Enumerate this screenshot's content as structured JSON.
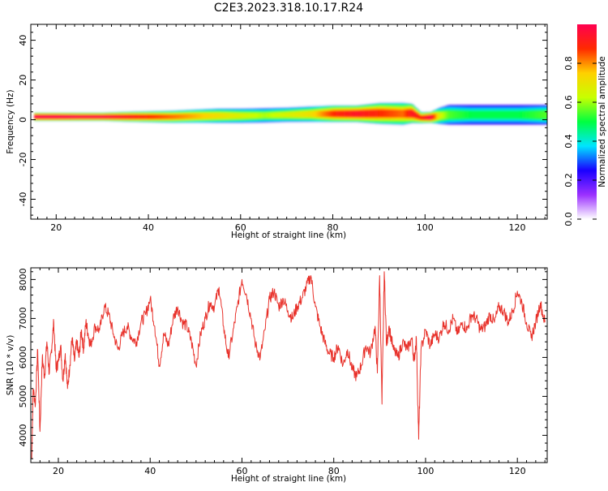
{
  "title": "C2E3.2023.318.10.17.R24",
  "chart_data": [
    {
      "type": "heatmap",
      "xlabel": "Height of straight line (km)",
      "ylabel": "Frequency (Hz)",
      "xlim": [
        14.5,
        126.5
      ],
      "ylim": [
        -50,
        48
      ],
      "x_ticks": [
        20,
        40,
        60,
        80,
        100,
        120
      ],
      "y_ticks": [
        -40,
        -20,
        0,
        20,
        40
      ],
      "colorbar": {
        "label": "Normalized spectral amplitude",
        "range": [
          0.0,
          1.0
        ],
        "ticks": [
          "0.0",
          "0.2",
          "0.4",
          "0.6",
          "0.8"
        ],
        "colors": [
          "#ffffff",
          "#9b30ff",
          "#1a00ff",
          "#00e5ff",
          "#00ff40",
          "#c8ff00",
          "#ffd000",
          "#ff2a00",
          "#ff0050"
        ]
      },
      "ridge": {
        "x": [
          15,
          20,
          25,
          30,
          35,
          40,
          45,
          50,
          55,
          60,
          65,
          70,
          75,
          80,
          85,
          90,
          95,
          97,
          99,
          101,
          103,
          105,
          110,
          115,
          120,
          126
        ],
        "center_hz": [
          1.5,
          1.5,
          1.5,
          1.5,
          1.5,
          1.5,
          1.5,
          1.8,
          2.0,
          2.0,
          2.2,
          2.5,
          2.8,
          3.0,
          3.0,
          3.2,
          3.0,
          3.2,
          1.0,
          1.2,
          2.0,
          2.5,
          2.5,
          2.5,
          2.5,
          2.5
        ],
        "halfwidth_hz": [
          1.5,
          1.5,
          1.5,
          1.5,
          1.8,
          2.0,
          2.2,
          2.4,
          2.6,
          2.6,
          2.6,
          2.6,
          2.8,
          3.0,
          3.0,
          3.8,
          4.0,
          3.5,
          2.0,
          2.0,
          3.0,
          3.6,
          3.6,
          3.6,
          3.6,
          3.6
        ],
        "amplitude": [
          0.95,
          0.95,
          0.9,
          0.9,
          0.85,
          0.8,
          0.75,
          0.7,
          0.65,
          0.6,
          0.55,
          0.6,
          0.65,
          0.8,
          0.85,
          0.8,
          0.75,
          0.85,
          0.8,
          0.9,
          0.6,
          0.5,
          0.45,
          0.45,
          0.45,
          0.5
        ]
      }
    },
    {
      "type": "line",
      "xlabel": "Height of straight line (km)",
      "ylabel": "SNR (10 * v/v)",
      "xlim": [
        14,
        126.5
      ],
      "ylim": [
        3300,
        8300
      ],
      "x_ticks": [
        20,
        40,
        60,
        80,
        100,
        120
      ],
      "y_ticks": [
        4000,
        5000,
        6000,
        7000,
        8000
      ],
      "color": "#e8312a",
      "series": [
        {
          "x": [
            14.2,
            14.5,
            15.0,
            15.5,
            16.0,
            16.5,
            17.0,
            17.5,
            18.0,
            18.5,
            19.0,
            19.5,
            20.0,
            20.5,
            21.0,
            21.5,
            22.0,
            22.5,
            23.0,
            23.5,
            24.0,
            24.5,
            25.0,
            25.5,
            26.0,
            26.5,
            27.0,
            28.0,
            29.0,
            30.0,
            31.0,
            32.0,
            33.0,
            34.0,
            35.0,
            36.0,
            37.0,
            38.0,
            39.0,
            40.0,
            41.0,
            42.0,
            43.0,
            44.0,
            45.0,
            46.0,
            47.0,
            48.0,
            49.0,
            50.0,
            51.0,
            52.0,
            53.0,
            54.0,
            55.0,
            56.0,
            57.0,
            58.0,
            59.0,
            60.0,
            61.0,
            62.0,
            63.0,
            64.0,
            65.0,
            66.0,
            67.0,
            68.0,
            69.0,
            70.0,
            71.0,
            72.0,
            73.0,
            74.0,
            75.0,
            76.0,
            77.0,
            78.0,
            79.0,
            80.0,
            81.0,
            82.0,
            83.0,
            84.0,
            85.0,
            86.0,
            87.0,
            88.0,
            89.0,
            89.5,
            90.0,
            90.5,
            91.0,
            91.5,
            92.0,
            93.0,
            94.0,
            95.0,
            96.0,
            97.0,
            97.5,
            98.0,
            98.5,
            99.0,
            100.0,
            101.0,
            102.0,
            103.0,
            104.0,
            105.0,
            106.0,
            107.0,
            108.0,
            109.0,
            110.0,
            111.0,
            112.0,
            113.0,
            114.0,
            115.0,
            116.0,
            117.0,
            118.0,
            119.0,
            120.0,
            121.0,
            122.0,
            123.0,
            124.0,
            125.0,
            126.0
          ],
          "y": [
            3400,
            5200,
            4800,
            6200,
            4100,
            6000,
            5500,
            6400,
            5600,
            6200,
            6900,
            5700,
            5900,
            6300,
            5400,
            6100,
            5200,
            5800,
            6500,
            5900,
            6400,
            6000,
            6700,
            6200,
            6900,
            6600,
            6300,
            6800,
            6700,
            7300,
            7100,
            6600,
            6200,
            6600,
            6800,
            6500,
            6400,
            6900,
            7100,
            7500,
            6800,
            5800,
            6600,
            6300,
            7000,
            7300,
            6900,
            6800,
            6400,
            5800,
            6600,
            7000,
            7400,
            7300,
            7800,
            6800,
            6000,
            6600,
            7300,
            8000,
            7600,
            7000,
            6300,
            6000,
            6700,
            7500,
            7700,
            7300,
            7500,
            7200,
            7000,
            7300,
            7500,
            7800,
            8100,
            7300,
            6800,
            6400,
            6100,
            6000,
            6300,
            5800,
            6200,
            5700,
            5500,
            5800,
            6300,
            6100,
            6800,
            5600,
            8100,
            4800,
            8200,
            6300,
            6800,
            6200,
            6000,
            6400,
            6200,
            6500,
            5900,
            6500,
            3900,
            6200,
            6700,
            6300,
            6600,
            6500,
            6900,
            6700,
            7000,
            6600,
            6900,
            6700,
            7100,
            7000,
            6700,
            6800,
            7100,
            6900,
            7300,
            7200,
            6900,
            7200,
            7700,
            7400,
            6900,
            6500,
            6900,
            7400,
            6900
          ]
        }
      ]
    }
  ]
}
